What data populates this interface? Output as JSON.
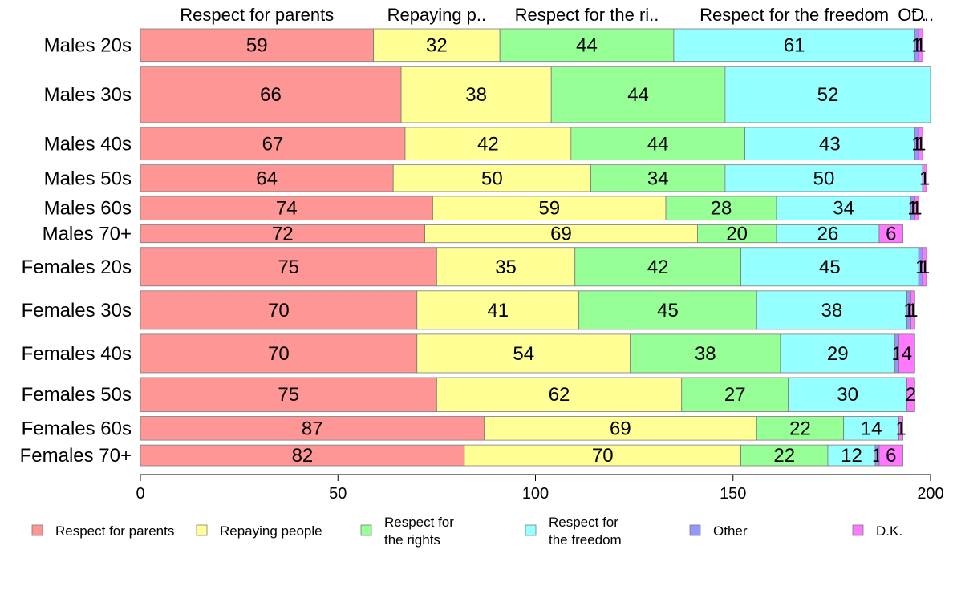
{
  "chart_data": {
    "type": "bar",
    "orientation": "horizontal",
    "stacked": true,
    "categories": [
      "Males 20s",
      "Males 30s",
      "Males 40s",
      "Males 50s",
      "Males 60s",
      "Males 70+",
      "Females 20s",
      "Females 30s",
      "Females 40s",
      "Females 50s",
      "Females 60s",
      "Females 70+"
    ],
    "bar_weights": [
      44,
      76,
      44,
      36,
      32,
      24,
      52,
      52,
      52,
      46,
      32,
      28
    ],
    "series": [
      {
        "name": "Respect for parents",
        "color": "#ff9696",
        "values": [
          59,
          66,
          67,
          64,
          74,
          72,
          75,
          70,
          70,
          75,
          87,
          82
        ]
      },
      {
        "name": "Repaying people",
        "color": "#ffff96",
        "values": [
          32,
          38,
          42,
          50,
          59,
          69,
          35,
          41,
          54,
          62,
          69,
          70
        ]
      },
      {
        "name": "Respect for the rights",
        "color": "#96ff96",
        "values": [
          44,
          44,
          44,
          34,
          28,
          20,
          42,
          45,
          38,
          27,
          22,
          22
        ]
      },
      {
        "name": "Respect for the freedom",
        "color": "#96ffff",
        "values": [
          61,
          52,
          43,
          50,
          34,
          26,
          45,
          38,
          29,
          30,
          14,
          12
        ]
      },
      {
        "name": "Other",
        "color": "#9696ff",
        "values": [
          1,
          0,
          1,
          0,
          1,
          0,
          1,
          1,
          1,
          0,
          0,
          1
        ]
      },
      {
        "name": "D.K.",
        "color": "#ff78ff",
        "values": [
          1,
          0,
          1,
          1,
          1,
          6,
          1,
          1,
          4,
          2,
          1,
          6
        ]
      }
    ],
    "column_headers": [
      "Respect for parents",
      "Repaying p..",
      "Respect for the ri..",
      "Respect for the freedom",
      "Ot..",
      "D.."
    ],
    "legend_labels": [
      [
        "Respect for parents"
      ],
      [
        "Repaying people"
      ],
      [
        "Respect for",
        "the rights"
      ],
      [
        "Respect for",
        "the freedom"
      ],
      [
        "Other"
      ],
      [
        "D.K."
      ]
    ],
    "xlim": [
      0,
      200
    ],
    "xticks": [
      0,
      50,
      100,
      150,
      200
    ],
    "grid": false,
    "legend_position": "bottom"
  }
}
